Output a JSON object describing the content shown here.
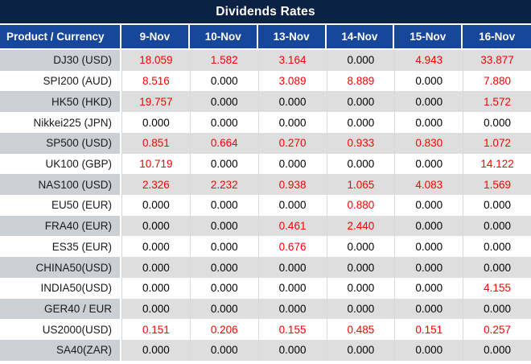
{
  "colors": {
    "title_bar_bg": "#0c2244",
    "header_bg": "#17479a",
    "header_text": "#ffffff",
    "stripe_product_bg": "#ccd0d4",
    "stripe_value_bg": "#dedede",
    "row_white_bg": "#ffffff",
    "value_red": "#fe0000",
    "value_black": "#000000",
    "grid_line": "#d9d9d9"
  },
  "chart_data": {
    "type": "table",
    "title": "Dividends Rates",
    "columns": [
      "Product / Currency",
      "9-Nov",
      "10-Nov",
      "13-Nov",
      "14-Nov",
      "15-Nov",
      "16-Nov"
    ],
    "rows": [
      {
        "product": "DJ30 (USD)",
        "values": [
          "18.059",
          "1.582",
          "3.164",
          "0.000",
          "4.943",
          "33.877"
        ],
        "red": [
          true,
          true,
          true,
          false,
          true,
          true
        ]
      },
      {
        "product": "SPI200 (AUD)",
        "values": [
          "8.516",
          "0.000",
          "3.089",
          "8.889",
          "0.000",
          "7.880"
        ],
        "red": [
          true,
          false,
          true,
          true,
          false,
          true
        ]
      },
      {
        "product": "HK50 (HKD)",
        "values": [
          "19.757",
          "0.000",
          "0.000",
          "0.000",
          "0.000",
          "1.572"
        ],
        "red": [
          true,
          false,
          false,
          false,
          false,
          true
        ]
      },
      {
        "product": "Nikkei225 (JPN)",
        "values": [
          "0.000",
          "0.000",
          "0.000",
          "0.000",
          "0.000",
          "0.000"
        ],
        "red": [
          false,
          false,
          false,
          false,
          false,
          false
        ]
      },
      {
        "product": "SP500 (USD)",
        "values": [
          "0.851",
          "0.664",
          "0.270",
          "0.933",
          "0.830",
          "1.072"
        ],
        "red": [
          true,
          true,
          true,
          true,
          true,
          true
        ]
      },
      {
        "product": "UK100 (GBP)",
        "values": [
          "10.719",
          "0.000",
          "0.000",
          "0.000",
          "0.000",
          "14.122"
        ],
        "red": [
          true,
          false,
          false,
          false,
          false,
          true
        ]
      },
      {
        "product": "NAS100 (USD)",
        "values": [
          "2.326",
          "2.232",
          "0.938",
          "1.065",
          "4.083",
          "1.569"
        ],
        "red": [
          true,
          true,
          true,
          true,
          true,
          true
        ]
      },
      {
        "product": "EU50 (EUR)",
        "values": [
          "0.000",
          "0.000",
          "0.000",
          "0.880",
          "0.000",
          "0.000"
        ],
        "red": [
          false,
          false,
          false,
          true,
          false,
          false
        ]
      },
      {
        "product": "FRA40 (EUR)",
        "values": [
          "0.000",
          "0.000",
          "0.461",
          "2.440",
          "0.000",
          "0.000"
        ],
        "red": [
          false,
          false,
          true,
          true,
          false,
          false
        ]
      },
      {
        "product": "ES35 (EUR)",
        "values": [
          "0.000",
          "0.000",
          "0.676",
          "0.000",
          "0.000",
          "0.000"
        ],
        "red": [
          false,
          false,
          true,
          false,
          false,
          false
        ]
      },
      {
        "product": "CHINA50(USD)",
        "values": [
          "0.000",
          "0.000",
          "0.000",
          "0.000",
          "0.000",
          "0.000"
        ],
        "red": [
          false,
          false,
          false,
          false,
          false,
          false
        ]
      },
      {
        "product": "INDIA50(USD)",
        "values": [
          "0.000",
          "0.000",
          "0.000",
          "0.000",
          "0.000",
          "4.155"
        ],
        "red": [
          false,
          false,
          false,
          false,
          false,
          true
        ]
      },
      {
        "product": "GER40 / EUR",
        "values": [
          "0.000",
          "0.000",
          "0.000",
          "0.000",
          "0.000",
          "0.000"
        ],
        "red": [
          false,
          false,
          false,
          false,
          false,
          false
        ]
      },
      {
        "product": "US2000(USD)",
        "values": [
          "0.151",
          "0.206",
          "0.155",
          "0.485",
          "0.151",
          "0.257"
        ],
        "red": [
          true,
          true,
          true,
          true,
          true,
          true
        ]
      },
      {
        "product": "SA40(ZAR)",
        "values": [
          "0.000",
          "0.000",
          "0.000",
          "0.000",
          "0.000",
          "0.000"
        ],
        "red": [
          false,
          false,
          false,
          false,
          false,
          false
        ]
      }
    ]
  }
}
